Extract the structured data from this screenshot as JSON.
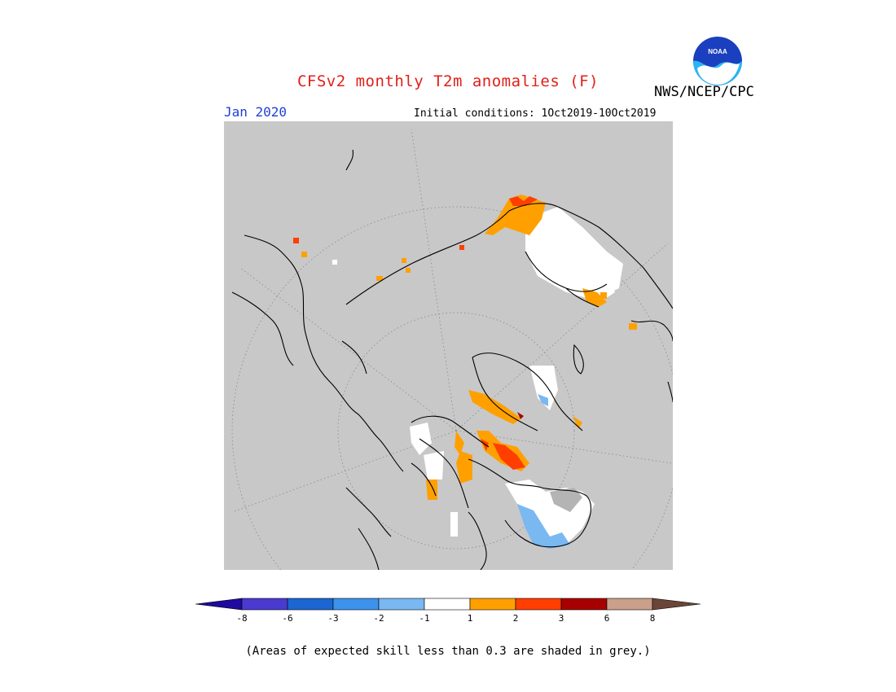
{
  "header": {
    "title": "CFSv2 monthly T2m anomalies (F)",
    "month": "Jan 2020",
    "initial_conditions": "Initial conditions: 1Oct2019-10Oct2019",
    "agency": "NWS/NCEP/CPC",
    "logo_text": "NOAA"
  },
  "legend": {
    "colors": [
      "#1e0a9e",
      "#4b3ad0",
      "#1b66d2",
      "#3d92ec",
      "#7ab8f2",
      "#ffffff",
      "#ffa000",
      "#ff3e00",
      "#a80000",
      "#caa08a",
      "#6b4538"
    ],
    "tick_labels": [
      "-8",
      "-6",
      "-3",
      "-2",
      "-1",
      "1",
      "2",
      "3",
      "6",
      "8"
    ]
  },
  "footnote": "(Areas of expected skill less than 0.3 are shaded in grey.)",
  "map": {
    "background_color": "#c8c8c8",
    "projection": "polar stereographic (North Pole)"
  }
}
